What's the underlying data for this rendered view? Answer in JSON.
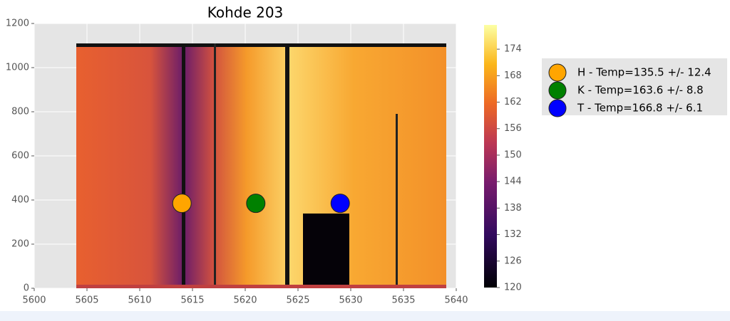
{
  "chart_data": {
    "type": "scatter",
    "title": "Kohde 203",
    "series": [
      {
        "name": "H - Temp=135.5 +/- 12.4",
        "color": "#ffa500",
        "x": [
          5614
        ],
        "values": [
          385
        ]
      },
      {
        "name": "K - Temp=163.6 +/- 8.8",
        "color": "#008000",
        "x": [
          5621
        ],
        "values": [
          385
        ]
      },
      {
        "name": "T - Temp=166.8 +/- 6.1",
        "color": "#0000ff",
        "x": [
          5629
        ],
        "values": [
          385
        ]
      }
    ],
    "xlim": [
      5600,
      5640
    ],
    "xticks": [
      5600,
      5605,
      5610,
      5615,
      5620,
      5625,
      5630,
      5635,
      5640
    ],
    "ylim": [
      0,
      1200
    ],
    "yticks": [
      0,
      200,
      400,
      600,
      800,
      1000,
      1200
    ],
    "grid": true,
    "legend": "right",
    "colorbar": {
      "lim": [
        120,
        179.5
      ],
      "ticks": [
        120,
        126,
        132,
        138,
        144,
        150,
        156,
        162,
        168,
        174
      ]
    }
  }
}
